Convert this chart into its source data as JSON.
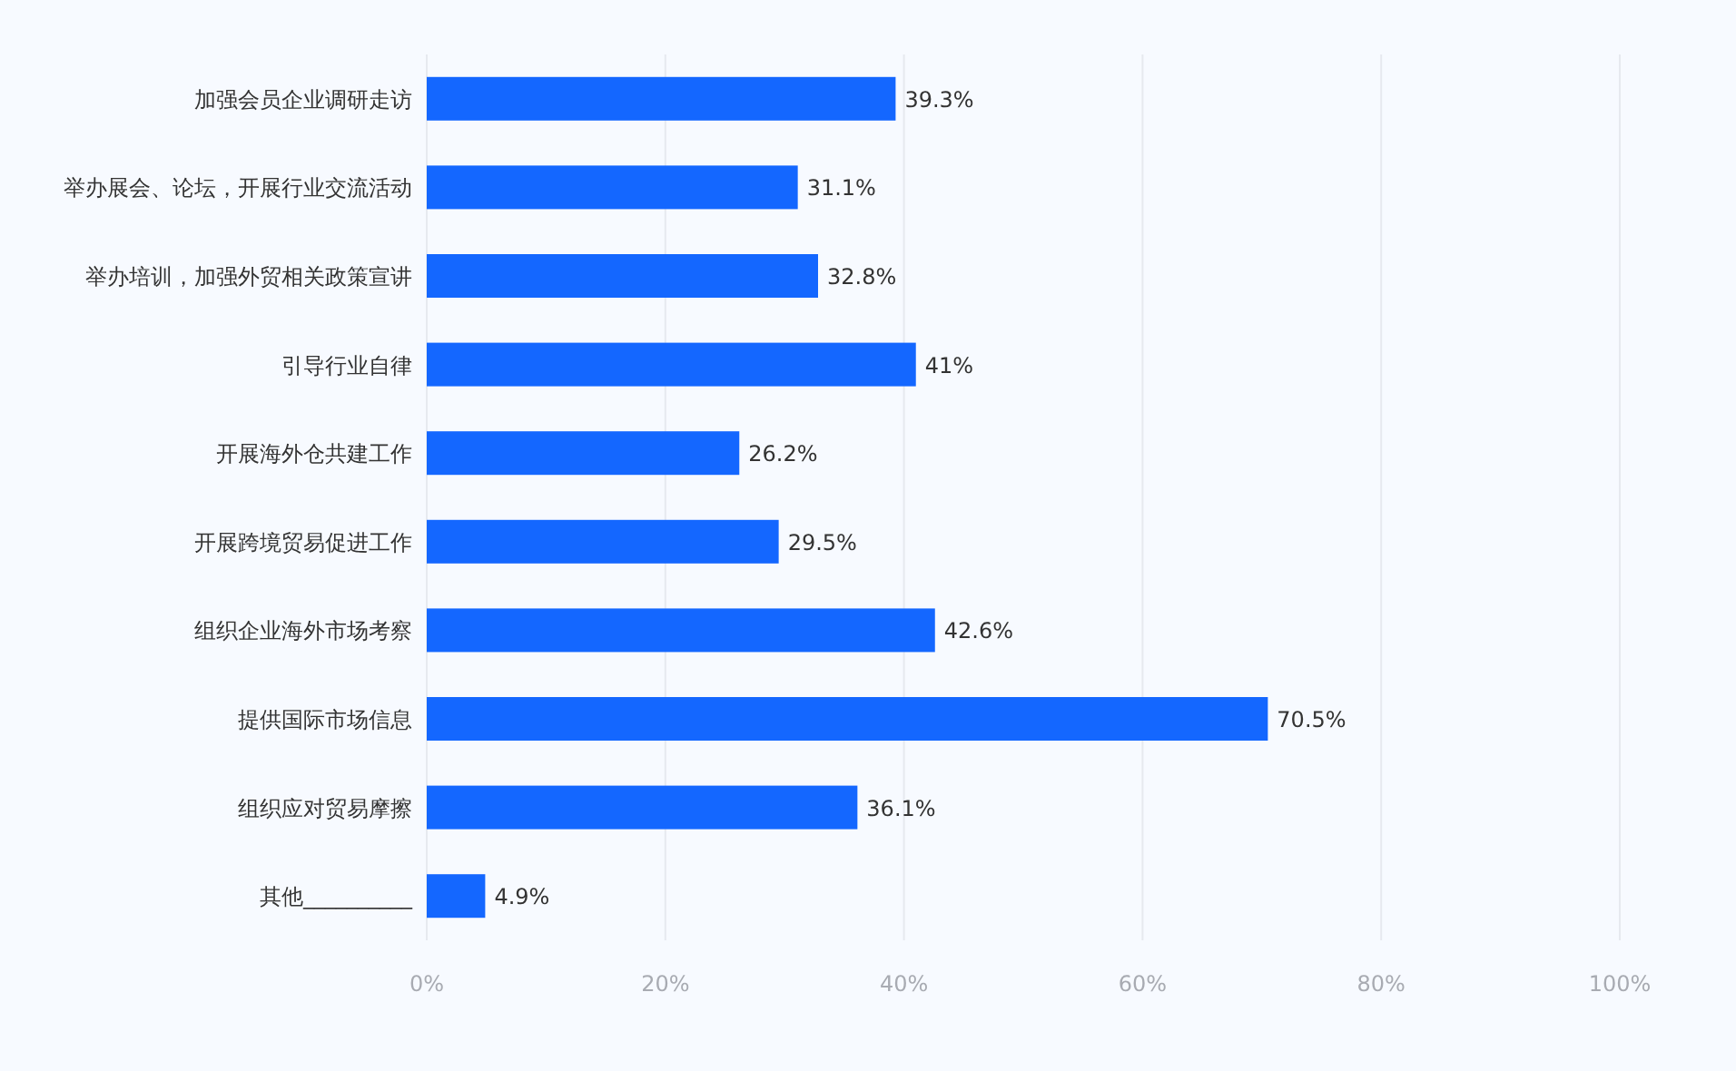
{
  "chart_data": {
    "type": "bar",
    "orientation": "horizontal",
    "categories": [
      "加强会员企业调研走访",
      "举办展会、论坛，开展行业交流活动",
      "举办培训，加强外贸相关政策宣讲",
      "引导行业自律",
      "开展海外仓共建工作",
      "开展跨境贸易促进工作",
      "组织企业海外市场考察",
      "提供国际市场信息",
      "组织应对贸易摩擦",
      "其他__________"
    ],
    "values": [
      39.3,
      31.1,
      32.8,
      41,
      26.2,
      29.5,
      42.6,
      70.5,
      36.1,
      4.9
    ],
    "value_labels": [
      "39.3%",
      "31.1%",
      "32.8%",
      "41%",
      "26.2%",
      "29.5%",
      "42.6%",
      "70.5%",
      "36.1%",
      "4.9%"
    ],
    "color": "#1467ff",
    "xlim": [
      0,
      100
    ],
    "xticks": [
      {
        "value": 0,
        "label": "0%"
      },
      {
        "value": 20,
        "label": "20%"
      },
      {
        "value": 40,
        "label": "40%"
      },
      {
        "value": 60,
        "label": "60%"
      },
      {
        "value": 80,
        "label": "80%"
      },
      {
        "value": 100,
        "label": "100%"
      }
    ],
    "grid": "x"
  }
}
